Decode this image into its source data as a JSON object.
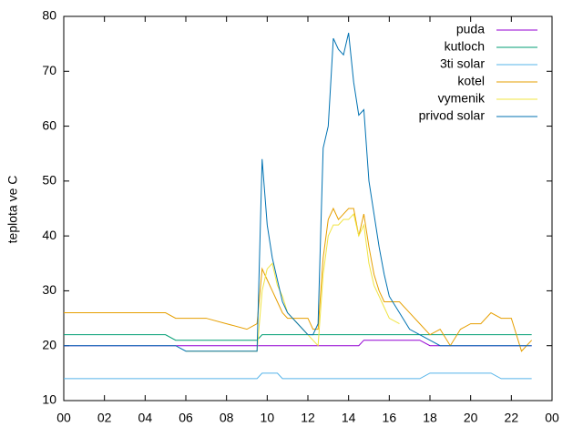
{
  "chart_data": {
    "type": "line",
    "y_label": "teplota ve C",
    "x": [
      0,
      1,
      2,
      3,
      4,
      5,
      5.5,
      6,
      7,
      8,
      9,
      9.5,
      9.75,
      10,
      10.25,
      10.5,
      10.75,
      11,
      11.25,
      11.5,
      11.75,
      12,
      12.25,
      12.5,
      12.75,
      13,
      13.25,
      13.5,
      13.75,
      14,
      14.25,
      14.5,
      14.75,
      15,
      15.25,
      15.5,
      15.75,
      16,
      16.5,
      17,
      17.5,
      18,
      18.5,
      19,
      19.5,
      20,
      20.5,
      21,
      21.5,
      22,
      22.5,
      23
    ],
    "series": [
      {
        "name": "puda",
        "color": "#9400d3",
        "values": [
          20,
          20,
          20,
          20,
          20,
          20,
          20,
          20,
          20,
          20,
          20,
          20,
          20,
          20,
          20,
          20,
          20,
          20,
          20,
          20,
          20,
          20,
          20,
          20,
          20,
          20,
          20,
          20,
          20,
          20,
          20,
          20,
          21,
          21,
          21,
          21,
          21,
          21,
          21,
          21,
          21,
          20,
          20,
          20,
          20,
          20,
          20,
          20,
          20,
          20,
          20,
          20
        ]
      },
      {
        "name": "kutloch",
        "color": "#009e73",
        "values": [
          22,
          22,
          22,
          22,
          22,
          22,
          21,
          21,
          21,
          21,
          21,
          21,
          22,
          22,
          22,
          22,
          22,
          22,
          22,
          22,
          22,
          22,
          22,
          22,
          22,
          22,
          22,
          22,
          22,
          22,
          22,
          22,
          22,
          22,
          22,
          22,
          22,
          22,
          22,
          22,
          22,
          22,
          22,
          22,
          22,
          22,
          22,
          22,
          22,
          22,
          22,
          22
        ]
      },
      {
        "name": "3ti solar",
        "color": "#56b4e9",
        "values": [
          14,
          14,
          14,
          14,
          14,
          14,
          14,
          14,
          14,
          14,
          14,
          14,
          15,
          15,
          15,
          15,
          14,
          14,
          14,
          14,
          14,
          14,
          14,
          14,
          14,
          14,
          14,
          14,
          14,
          14,
          14,
          14,
          14,
          14,
          14,
          14,
          14,
          14,
          14,
          14,
          14,
          15,
          15,
          15,
          15,
          15,
          15,
          15,
          14,
          14,
          14,
          14
        ]
      },
      {
        "name": "kotel",
        "color": "#e69f00",
        "values": [
          26,
          26,
          26,
          26,
          26,
          26,
          25,
          25,
          25,
          24,
          23,
          24,
          34,
          32,
          30,
          28,
          26,
          25,
          25,
          25,
          25,
          25,
          23,
          23,
          36,
          43,
          45,
          43,
          44,
          45,
          45,
          40,
          44,
          38,
          33,
          30,
          28,
          28,
          28,
          26,
          24,
          22,
          23,
          20,
          23,
          24,
          24,
          26,
          25,
          25,
          19,
          21
        ]
      },
      {
        "name": "vymenik",
        "color": "#f0e442",
        "values": [
          null,
          null,
          null,
          null,
          null,
          null,
          null,
          19,
          19,
          19,
          19,
          19,
          30,
          34,
          35,
          31,
          29,
          26,
          25,
          24,
          23,
          22,
          21,
          20,
          33,
          40,
          42,
          42,
          43,
          43,
          44,
          40,
          42,
          35,
          31,
          29,
          27,
          25,
          24,
          null,
          null,
          null,
          null,
          null,
          null,
          null,
          null,
          null,
          null,
          null,
          null,
          null
        ]
      },
      {
        "name": "privod solar",
        "color": "#0072b2",
        "values": [
          20,
          20,
          20,
          20,
          20,
          20,
          20,
          19,
          19,
          19,
          19,
          19,
          54,
          42,
          36,
          32,
          28,
          26,
          25,
          24,
          23,
          22,
          22,
          24,
          56,
          60,
          76,
          74,
          73,
          77,
          68,
          62,
          63,
          50,
          44,
          38,
          33,
          29,
          26,
          23,
          22,
          21,
          20,
          20,
          20,
          20,
          20,
          20,
          20,
          20,
          20,
          20
        ]
      }
    ],
    "xlim": [
      0,
      24
    ],
    "xticks": [
      {
        "value": 0,
        "label": "00"
      },
      {
        "value": 2,
        "label": "02"
      },
      {
        "value": 4,
        "label": "04"
      },
      {
        "value": 6,
        "label": "06"
      },
      {
        "value": 8,
        "label": "08"
      },
      10,
      12,
      14,
      16,
      18,
      20,
      22,
      {
        "value": 24,
        "label": "00"
      }
    ],
    "ylim": [
      10,
      80
    ],
    "yticks": [
      10,
      20,
      30,
      40,
      50,
      60,
      70,
      80
    ],
    "legend": "top-right"
  }
}
